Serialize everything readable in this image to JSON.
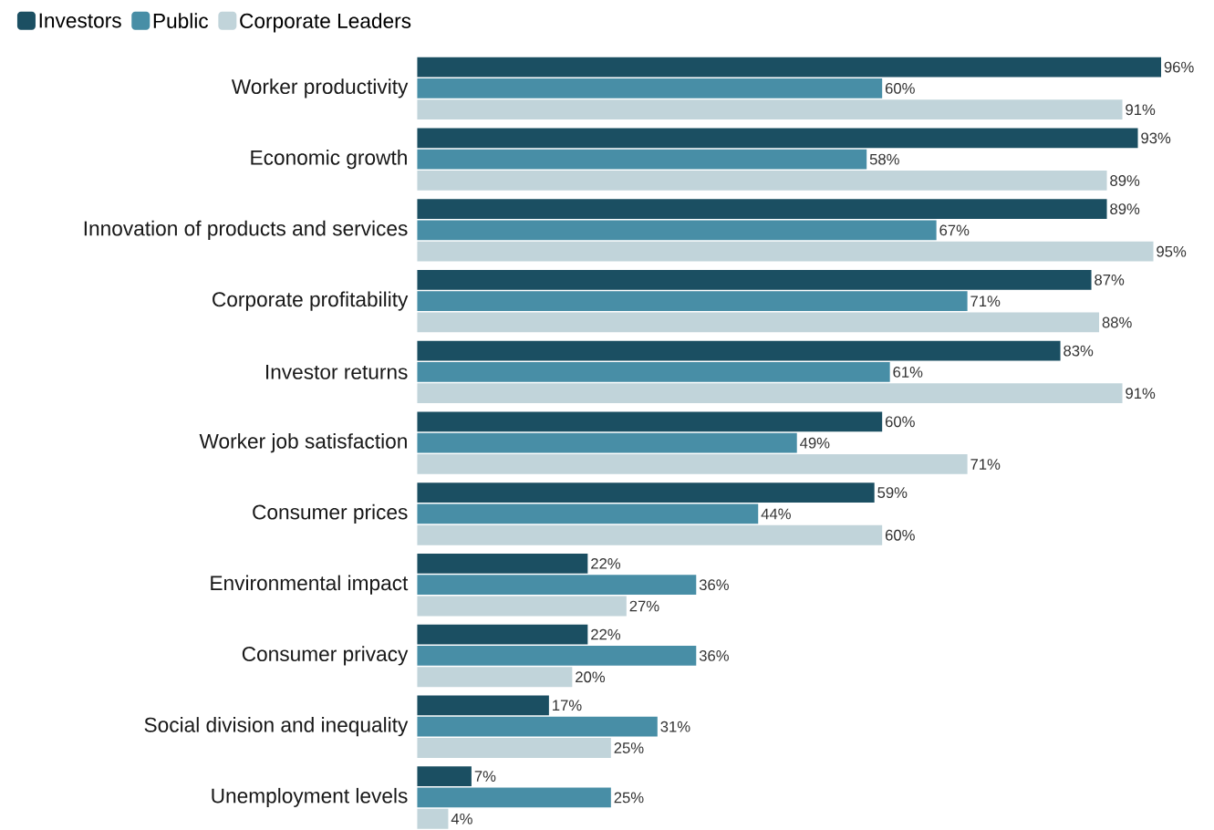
{
  "chart_data": {
    "type": "bar",
    "orientation": "horizontal",
    "legend": "top left",
    "categories": [
      "Worker productivity",
      "Economic growth",
      "Innovation of products and services",
      "Corporate profitability",
      "Investor returns",
      "Worker job satisfaction",
      "Consumer prices",
      "Environmental impact",
      "Consumer privacy",
      "Social division and inequality",
      "Unemployment levels"
    ],
    "series": [
      {
        "name": "Investors",
        "color": "#1b4f62",
        "values": [
          96,
          93,
          89,
          87,
          83,
          60,
          59,
          22,
          22,
          17,
          7
        ],
        "value_labels": [
          "96%",
          "93%",
          "89%",
          "87%",
          "83%",
          "60%",
          "59%",
          "22%",
          "22%",
          "17%",
          "7%"
        ]
      },
      {
        "name": "Public",
        "color": "#488ea6",
        "values": [
          60,
          58,
          67,
          71,
          61,
          49,
          44,
          36,
          36,
          31,
          25
        ],
        "value_labels": [
          "60%",
          "58%",
          "67%",
          "71%",
          "61%",
          "49%",
          "44%",
          "36%",
          "36%",
          "31%",
          "25%"
        ]
      },
      {
        "name": "Corporate Leaders",
        "color": "#c1d4da",
        "values": [
          91,
          89,
          95,
          88,
          91,
          71,
          60,
          27,
          20,
          25,
          4
        ],
        "value_labels": [
          "91%",
          "89%",
          "95%",
          "88%",
          "91%",
          "71%",
          "60%",
          "27%",
          "20%",
          "25%",
          "4%"
        ]
      }
    ]
  }
}
